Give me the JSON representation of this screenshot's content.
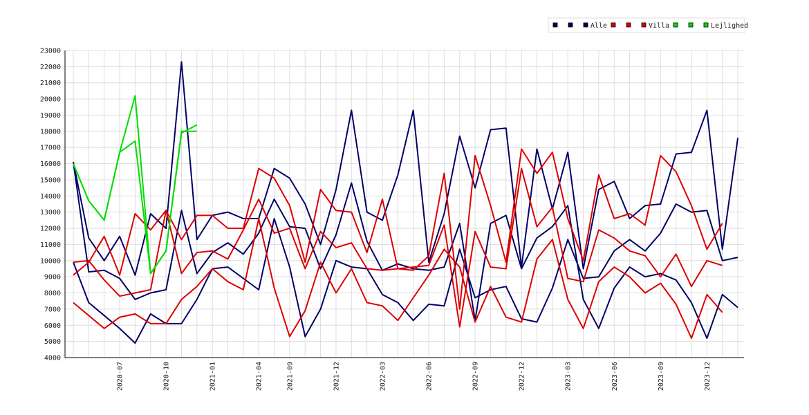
{
  "chart_data": {
    "type": "line",
    "ylim": [
      4000,
      23000
    ],
    "yticks": [
      4000,
      5000,
      6000,
      7000,
      8000,
      9000,
      10000,
      11000,
      12000,
      13000,
      14000,
      15000,
      16000,
      17000,
      18000,
      19000,
      20000,
      21000,
      22000,
      23000
    ],
    "xticks": [
      "2020-07",
      "2020-10",
      "2021-01",
      "2021-04",
      "2021-09",
      "2021-12",
      "2022-03",
      "2022-06",
      "2022-09",
      "2022-12",
      "2023-03",
      "2023-06",
      "2023-09",
      "2023-12"
    ],
    "grid": true,
    "legend_position": "top-right",
    "legend": [
      {
        "label": "",
        "color": "#000066"
      },
      {
        "label": "",
        "color": "#000066"
      },
      {
        "label": "Alle",
        "color": "#000066"
      },
      {
        "label": "",
        "color": "#dd0000"
      },
      {
        "label": "",
        "color": "#dd0000"
      },
      {
        "label": "Villa",
        "color": "#dd0000"
      },
      {
        "label": "",
        "color": "#00dd00"
      },
      {
        "label": "",
        "color": "#00dd00"
      },
      {
        "label": "Lejlighed",
        "color": "#00dd00"
      }
    ],
    "series": [
      {
        "color": "#000066",
        "x": [
          0,
          1,
          2,
          3,
          4,
          5,
          6,
          7,
          8,
          9,
          10,
          11,
          12,
          13,
          14,
          15,
          16,
          17,
          18,
          19,
          20,
          21,
          22,
          23,
          24,
          25,
          26,
          27,
          28,
          29,
          30,
          31,
          32,
          33,
          34,
          35,
          36,
          37,
          38,
          39,
          40,
          41,
          42,
          43
        ],
        "values": [
          16100,
          11400,
          10000,
          11500,
          9100,
          12900,
          12000,
          22300,
          11300,
          12800,
          13000,
          12600,
          12600,
          15700,
          15100,
          13500,
          11000,
          14400,
          19300,
          13000,
          12500,
          15300,
          19300,
          9900,
          12900,
          17700,
          14500,
          18100,
          18200,
          9600,
          16900,
          13200,
          16700,
          9500,
          14400,
          14900,
          12600,
          13400,
          13500,
          16600,
          16700,
          19300,
          10700,
          17600
        ]
      },
      {
        "color": "#000066",
        "x": [
          0,
          1,
          2,
          3,
          4,
          5,
          6,
          7,
          8,
          9,
          10,
          11,
          12,
          13,
          14,
          15,
          16,
          17,
          18,
          19,
          20,
          21,
          22,
          23,
          24,
          25,
          26,
          27,
          28,
          29,
          30,
          31,
          32,
          33,
          34,
          35,
          36,
          37,
          38,
          39,
          40,
          41,
          42,
          43
        ],
        "values": [
          16100,
          9300,
          9400,
          8900,
          7600,
          8000,
          8200,
          13100,
          9200,
          10500,
          11100,
          10400,
          11700,
          13800,
          12100,
          12000,
          9500,
          11600,
          14800,
          11200,
          9400,
          9800,
          9500,
          9400,
          9600,
          12300,
          6300,
          12300,
          12800,
          9500,
          11400,
          12100,
          13400,
          7600,
          5800,
          8300,
          9600,
          9000,
          9200,
          8800,
          7400,
          5200,
          7900,
          7100
        ]
      },
      {
        "color": "#000066",
        "x": [
          0,
          1,
          2,
          3,
          4,
          5,
          6,
          7,
          8,
          9,
          10,
          11,
          12,
          13,
          14,
          15,
          16,
          17,
          18,
          19,
          20,
          21,
          22,
          23,
          24,
          25,
          26,
          27,
          28,
          29,
          30,
          31,
          32,
          33,
          34,
          35,
          36,
          37,
          38,
          39,
          40,
          41,
          42,
          43
        ],
        "values": [
          9900,
          7400,
          6600,
          5800,
          4900,
          6700,
          6100,
          6100,
          7600,
          9500,
          9600,
          8900,
          8200,
          12600,
          9600,
          5300,
          7000,
          10000,
          9600,
          9500,
          7900,
          7400,
          6300,
          7300,
          7200,
          10700,
          7700,
          8200,
          8400,
          6400,
          6200,
          8300,
          11300,
          8900,
          9000,
          10600,
          11300,
          10600,
          11700,
          13500,
          13000,
          13100,
          10000,
          10200
        ]
      },
      {
        "color": "#dd0000",
        "x": [
          0,
          1,
          2,
          3,
          4,
          5,
          6,
          7,
          8,
          9,
          10,
          11,
          12,
          13,
          14,
          15,
          16,
          17,
          18,
          19,
          20,
          21,
          22,
          23,
          24,
          25,
          26,
          27,
          28,
          29,
          30,
          31,
          32,
          33,
          34,
          35,
          36,
          37,
          38,
          39,
          40,
          41,
          42
        ],
        "values": [
          9100,
          9900,
          11500,
          9100,
          12900,
          11900,
          13100,
          11300,
          12800,
          12800,
          12000,
          12000,
          15700,
          15100,
          13400,
          9900,
          14400,
          13100,
          13000,
          10500,
          13800,
          9500,
          9400,
          10300,
          15400,
          7000,
          16500,
          13400,
          9900,
          16900,
          15400,
          16700,
          12600,
          10000,
          15300,
          12600,
          12900,
          12200,
          16500,
          15500,
          13400,
          10700,
          12300
        ]
      },
      {
        "color": "#dd0000",
        "x": [
          0,
          1,
          2,
          3,
          4,
          5,
          6,
          7,
          8,
          9,
          10,
          11,
          12,
          13,
          14,
          15,
          16,
          17,
          18,
          19,
          20,
          21,
          22,
          23,
          24,
          25,
          26,
          27,
          28,
          29,
          30,
          31,
          32,
          33,
          34,
          35,
          36,
          37,
          38,
          39,
          40,
          41,
          42
        ],
        "values": [
          9900,
          10000,
          8800,
          7800,
          8000,
          8200,
          13100,
          9200,
          10500,
          10600,
          10100,
          11900,
          13800,
          11700,
          12000,
          9500,
          11800,
          10800,
          11100,
          9500,
          9400,
          9500,
          9600,
          9700,
          12200,
          5900,
          11800,
          9600,
          9500,
          15700,
          12100,
          13300,
          8900,
          8700,
          11900,
          11400,
          10600,
          10300,
          9000,
          10400,
          8400,
          10000,
          9700
        ]
      },
      {
        "color": "#dd0000",
        "x": [
          0,
          1,
          2,
          3,
          4,
          5,
          6,
          7,
          8,
          9,
          10,
          11,
          12,
          13,
          14,
          15,
          16,
          17,
          18,
          19,
          20,
          21,
          22,
          23,
          24,
          25,
          26,
          27,
          28,
          29,
          30,
          31,
          32,
          33,
          34,
          35,
          36,
          37,
          38,
          39,
          40,
          41,
          42
        ],
        "values": [
          7400,
          6600,
          5800,
          6500,
          6700,
          6100,
          6100,
          7600,
          8400,
          9500,
          8700,
          8200,
          12600,
          8300,
          5300,
          6900,
          9900,
          8000,
          9500,
          7400,
          7200,
          6300,
          7700,
          9100,
          10700,
          9600,
          6200,
          8400,
          6500,
          6200,
          10100,
          11300,
          7600,
          5800,
          8700,
          9600,
          9000,
          8000,
          8600,
          7300,
          5200,
          7900,
          6800
        ]
      },
      {
        "color": "#00dd00",
        "x": [
          0,
          1,
          2,
          3,
          4,
          5,
          6,
          7,
          8
        ],
        "values": [
          16000,
          13700,
          12500,
          16700,
          20200,
          9200,
          10600,
          17900,
          18400
        ]
      },
      {
        "color": "#00dd00",
        "x": [
          0,
          1,
          2,
          3,
          4,
          5,
          6,
          7,
          8
        ],
        "values": [
          16000,
          13700,
          12500,
          16700,
          17400,
          9200,
          10600,
          18000,
          18000
        ]
      }
    ]
  }
}
